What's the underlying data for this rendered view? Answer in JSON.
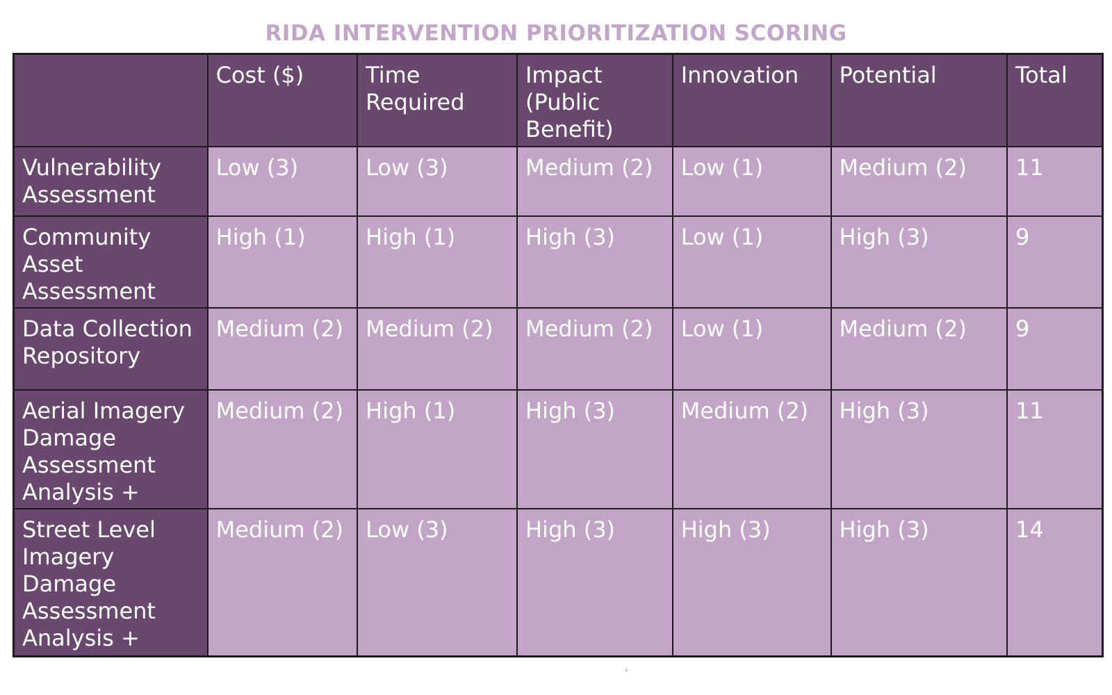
{
  "title": "RIDA INTERVENTION PRIORITIZATION SCORING",
  "colors": {
    "title": "#c3a5c9",
    "header_bg": "#6a476e",
    "cell_bg": "#c1a4c6",
    "border": "#1c1a1c",
    "text": "#ffffff"
  },
  "table": {
    "corner": "",
    "columns": [
      "Cost ($)",
      "Time Required",
      "Impact (Public Benefit)",
      "Innovation",
      "Potential",
      "Total"
    ],
    "rows": [
      {
        "label": "Vulnerability Assessment",
        "cells": [
          "Low (3)",
          "Low (3)",
          "Medium (2)",
          "Low (1)",
          "Medium (2)",
          "11"
        ]
      },
      {
        "label": "Community Asset Assessment",
        "cells": [
          "High (1)",
          "High (1)",
          "High (3)",
          "Low (1)",
          "High (3)",
          "9"
        ]
      },
      {
        "label": "Data Collection Repository",
        "cells": [
          "Medium (2)",
          "Medium (2)",
          "Medium (2)",
          "Low (1)",
          "Medium (2)",
          "9"
        ]
      },
      {
        "label": "Aerial Imagery Damage Assessment Analysis +",
        "cells": [
          "Medium (2)",
          "High (1)",
          "High (3)",
          "Medium (2)",
          "High (3)",
          "11"
        ]
      },
      {
        "label": "Street Level Imagery Damage Assessment Analysis +",
        "cells": [
          "Medium (2)",
          "Low (3)",
          "High (3)",
          "High (3)",
          "High (3)",
          "14"
        ]
      }
    ]
  },
  "footnote_mark": "′"
}
